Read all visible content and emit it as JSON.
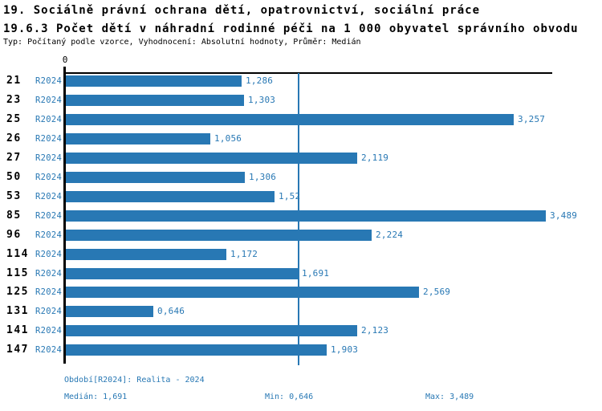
{
  "header": {
    "line1": "19. Sociálně právní ochrana dětí, opatrovnictví, sociální práce",
    "line2": "19.6.3 Počet dětí v náhradní rodinné péči na 1 000 obyvatel správního obvodu",
    "subtitle": "Typ: Počítaný podle vzorce, Vyhodnocení: Absolutní hodnoty, Průměr: Medián"
  },
  "colors": {
    "bar": "#2878b4",
    "text_blue": "#2878b4",
    "axis_black": "#000000",
    "background": "#ffffff"
  },
  "chart_data": {
    "type": "bar",
    "orientation": "horizontal",
    "axis_zero_label": "0",
    "series_label": "R2024",
    "categories": [
      "21",
      "23",
      "25",
      "26",
      "27",
      "50",
      "53",
      "85",
      "96",
      "114",
      "115",
      "125",
      "131",
      "141",
      "147"
    ],
    "values": [
      1.286,
      1.303,
      3.257,
      1.056,
      2.119,
      1.306,
      1.52,
      3.489,
      2.224,
      1.172,
      1.691,
      2.569,
      0.646,
      2.123,
      1.903
    ],
    "value_labels": [
      "1,286",
      "1,303",
      "3,257",
      "1,056",
      "2,119",
      "1,306",
      "1,52",
      "3,489",
      "2,224",
      "1,172",
      "1,691",
      "2,569",
      "0,646",
      "2,123",
      "1,903"
    ],
    "median_line_value": 1.691,
    "xlim": [
      0,
      3.53
    ],
    "grid": false,
    "legend": false
  },
  "footer": {
    "period": "Období[R2024]: Realita - 2024",
    "median": "Medián: 1,691",
    "min": "Min: 0,646",
    "max": "Max: 3,489"
  }
}
